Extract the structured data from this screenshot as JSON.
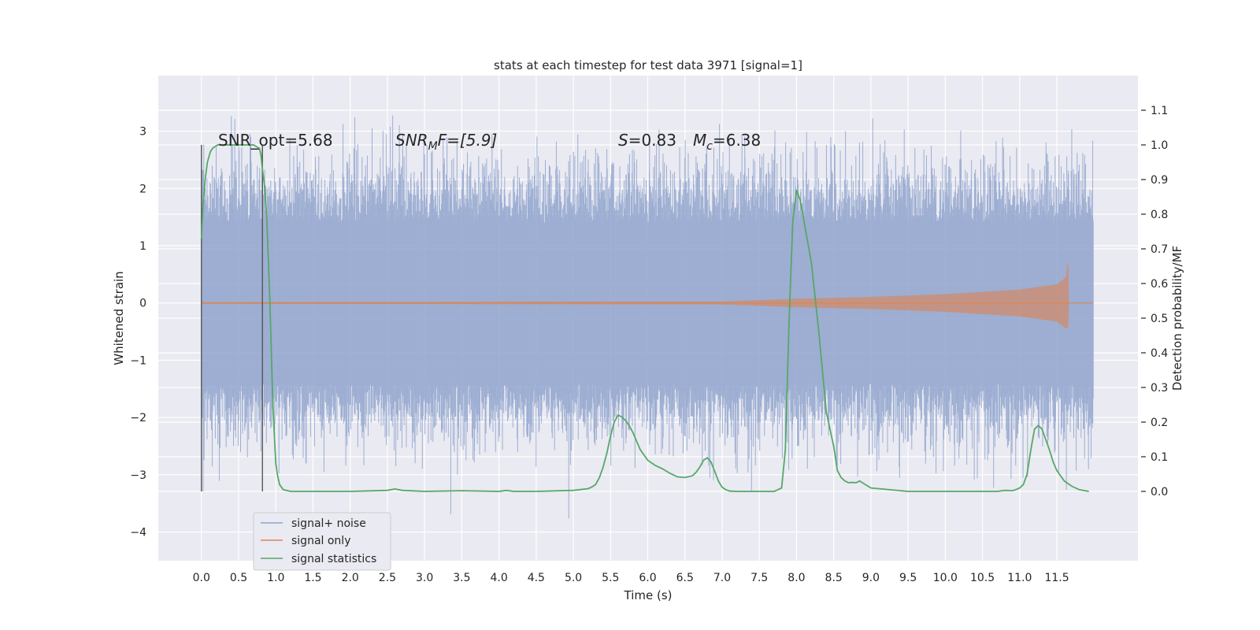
{
  "chart_data": {
    "type": "line",
    "title": "stats at each timestep for test data 3971 [signal=1]",
    "xlabel": "Time (s)",
    "ylabel": "Whitened strain",
    "y2label": "Detection probability/MF",
    "xlim": [
      -0.58,
      12.59
    ],
    "ylim": [
      -4.5,
      3.97
    ],
    "y2lim": [
      -0.2,
      1.2
    ],
    "x_ticks": [
      "0.0",
      "0.5",
      "1.0",
      "1.5",
      "2.0",
      "2.5",
      "3.0",
      "3.5",
      "4.0",
      "4.5",
      "5.0",
      "5.5",
      "6.0",
      "6.5",
      "7.0",
      "7.5",
      "8.0",
      "8.5",
      "9.0",
      "9.5",
      "10.0",
      "10.5",
      "11.0",
      "11.5"
    ],
    "y_ticks": [
      "3",
      "2",
      "1",
      "0",
      "−1",
      "−2",
      "−3",
      "−4"
    ],
    "y2_ticks": [
      "1.1",
      "1.0",
      "0.9",
      "0.8",
      "0.7",
      "0.6",
      "0.5",
      "0.4",
      "0.3",
      "0.2",
      "0.1",
      "0.0"
    ],
    "grid": true,
    "legend_position": "lower-left",
    "annotations": {
      "snr_opt": "SNR_opt=5.68",
      "snr_mf_main": "SNR",
      "snr_mf_sub": "M",
      "snr_mf_rest": "F=[5.9]",
      "s_main": "S",
      "s_rest": "=0.83",
      "mc_main": "M",
      "mc_sub": "c",
      "mc_rest": "=6.38"
    },
    "vertical_markers": [
      0.0,
      0.82
    ],
    "series": [
      {
        "name": "signal+ noise",
        "color": "#8fa3cc",
        "x_range": [
          0.0,
          11.99
        ],
        "typical_amplitude": 1.4,
        "peak_high": 3.48,
        "peak_low": -3.95
      },
      {
        "name": "signal only",
        "color": "#dd8452",
        "envelope": [
          [
            0.0,
            0.01
          ],
          [
            7.0,
            0.02
          ],
          [
            8.0,
            0.07
          ],
          [
            9.0,
            0.1
          ],
          [
            10.0,
            0.15
          ],
          [
            11.0,
            0.23
          ],
          [
            11.5,
            0.32
          ],
          [
            11.62,
            0.44
          ],
          [
            11.65,
            0.7
          ],
          [
            11.66,
            0.0
          ]
        ],
        "x_range": [
          0.0,
          11.99
        ]
      },
      {
        "name": "signal statistics",
        "color": "#55a868",
        "axis": "right",
        "x": [
          0.0,
          0.02,
          0.05,
          0.08,
          0.12,
          0.15,
          0.18,
          0.22,
          0.3,
          0.4,
          0.5,
          0.6,
          0.7,
          0.78,
          0.8,
          0.82,
          0.85,
          0.88,
          0.92,
          0.96,
          1.0,
          1.02,
          1.05,
          1.1,
          1.2,
          1.5,
          2.0,
          2.5,
          2.6,
          2.7,
          3.0,
          3.5,
          4.0,
          4.1,
          4.2,
          4.5,
          5.0,
          5.2,
          5.25,
          5.3,
          5.35,
          5.4,
          5.45,
          5.5,
          5.55,
          5.6,
          5.65,
          5.7,
          5.75,
          5.8,
          5.85,
          5.9,
          6.0,
          6.1,
          6.2,
          6.3,
          6.4,
          6.5,
          6.6,
          6.65,
          6.7,
          6.75,
          6.8,
          6.85,
          6.9,
          6.95,
          7.0,
          7.05,
          7.1,
          7.2,
          7.3,
          7.5,
          7.7,
          7.75,
          7.8,
          7.85,
          7.9,
          7.95,
          8.0,
          8.05,
          8.1,
          8.2,
          8.3,
          8.4,
          8.5,
          8.55,
          8.6,
          8.65,
          8.7,
          8.75,
          8.8,
          8.85,
          8.9,
          9.0,
          9.5,
          10.0,
          10.5,
          10.7,
          10.8,
          10.9,
          10.95,
          11.0,
          11.05,
          11.1,
          11.15,
          11.2,
          11.25,
          11.3,
          11.35,
          11.4,
          11.45,
          11.5,
          11.55,
          11.6,
          11.7,
          11.8,
          11.93
        ],
        "values": [
          0.73,
          0.82,
          0.9,
          0.95,
          0.98,
          0.99,
          0.995,
          1.0,
          1.0,
          1.0,
          1.0,
          1.0,
          1.0,
          0.99,
          0.97,
          0.93,
          0.88,
          0.78,
          0.55,
          0.25,
          0.08,
          0.05,
          0.02,
          0.005,
          0.0,
          0.0,
          0.0,
          0.003,
          0.007,
          0.003,
          0.0,
          0.002,
          0.0,
          0.003,
          0.0,
          0.0,
          0.003,
          0.008,
          0.013,
          0.02,
          0.04,
          0.07,
          0.11,
          0.16,
          0.2,
          0.22,
          0.215,
          0.205,
          0.19,
          0.17,
          0.145,
          0.12,
          0.09,
          0.075,
          0.065,
          0.052,
          0.042,
          0.04,
          0.045,
          0.055,
          0.07,
          0.09,
          0.097,
          0.085,
          0.058,
          0.03,
          0.012,
          0.005,
          0.001,
          0.0,
          0.0,
          0.0,
          0.0,
          0.005,
          0.01,
          0.12,
          0.49,
          0.78,
          0.87,
          0.84,
          0.78,
          0.66,
          0.46,
          0.23,
          0.13,
          0.06,
          0.04,
          0.03,
          0.025,
          0.026,
          0.025,
          0.03,
          0.023,
          0.01,
          0.0,
          0.0,
          0.0,
          0.0,
          0.003,
          0.002,
          0.005,
          0.01,
          0.02,
          0.05,
          0.12,
          0.18,
          0.19,
          0.18,
          0.15,
          0.12,
          0.085,
          0.06,
          0.045,
          0.03,
          0.015,
          0.005,
          0.0
        ]
      }
    ]
  }
}
